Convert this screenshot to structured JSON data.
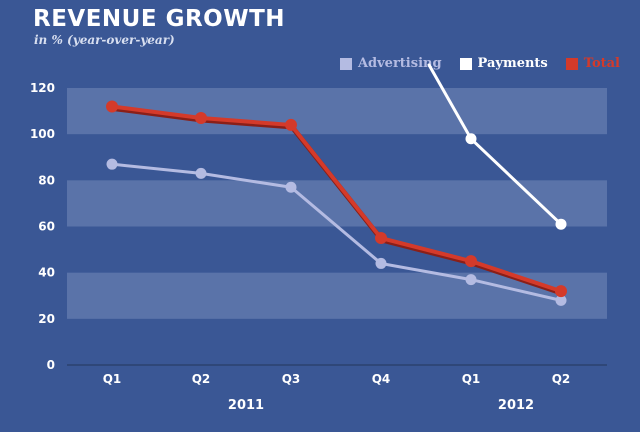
{
  "chart_data": {
    "type": "line",
    "title": "REVENUE GROWTH",
    "subtitle": "in % (year-over-year)",
    "categories": [
      "Q1",
      "Q2",
      "Q3",
      "Q4",
      "Q1",
      "Q2"
    ],
    "category_years": [
      "2011",
      "2012"
    ],
    "ylim": [
      0,
      120
    ],
    "yticks": [
      "0",
      "20",
      "40",
      "60",
      "80",
      "100",
      "120"
    ],
    "legend_position": "top-right",
    "series": [
      {
        "name": "Advertising",
        "color": "#b4bbe2",
        "values": [
          87,
          83,
          77,
          44,
          37,
          28
        ]
      },
      {
        "name": "Payments",
        "color": "#ffffff",
        "values": [
          null,
          null,
          null,
          null,
          98,
          61
        ]
      },
      {
        "name": "Total",
        "color": "#d43a2a",
        "values": [
          112,
          107,
          104,
          55,
          45,
          32
        ]
      }
    ],
    "payments_off_chart_start": {
      "from_value": 130,
      "note": ""
    }
  }
}
